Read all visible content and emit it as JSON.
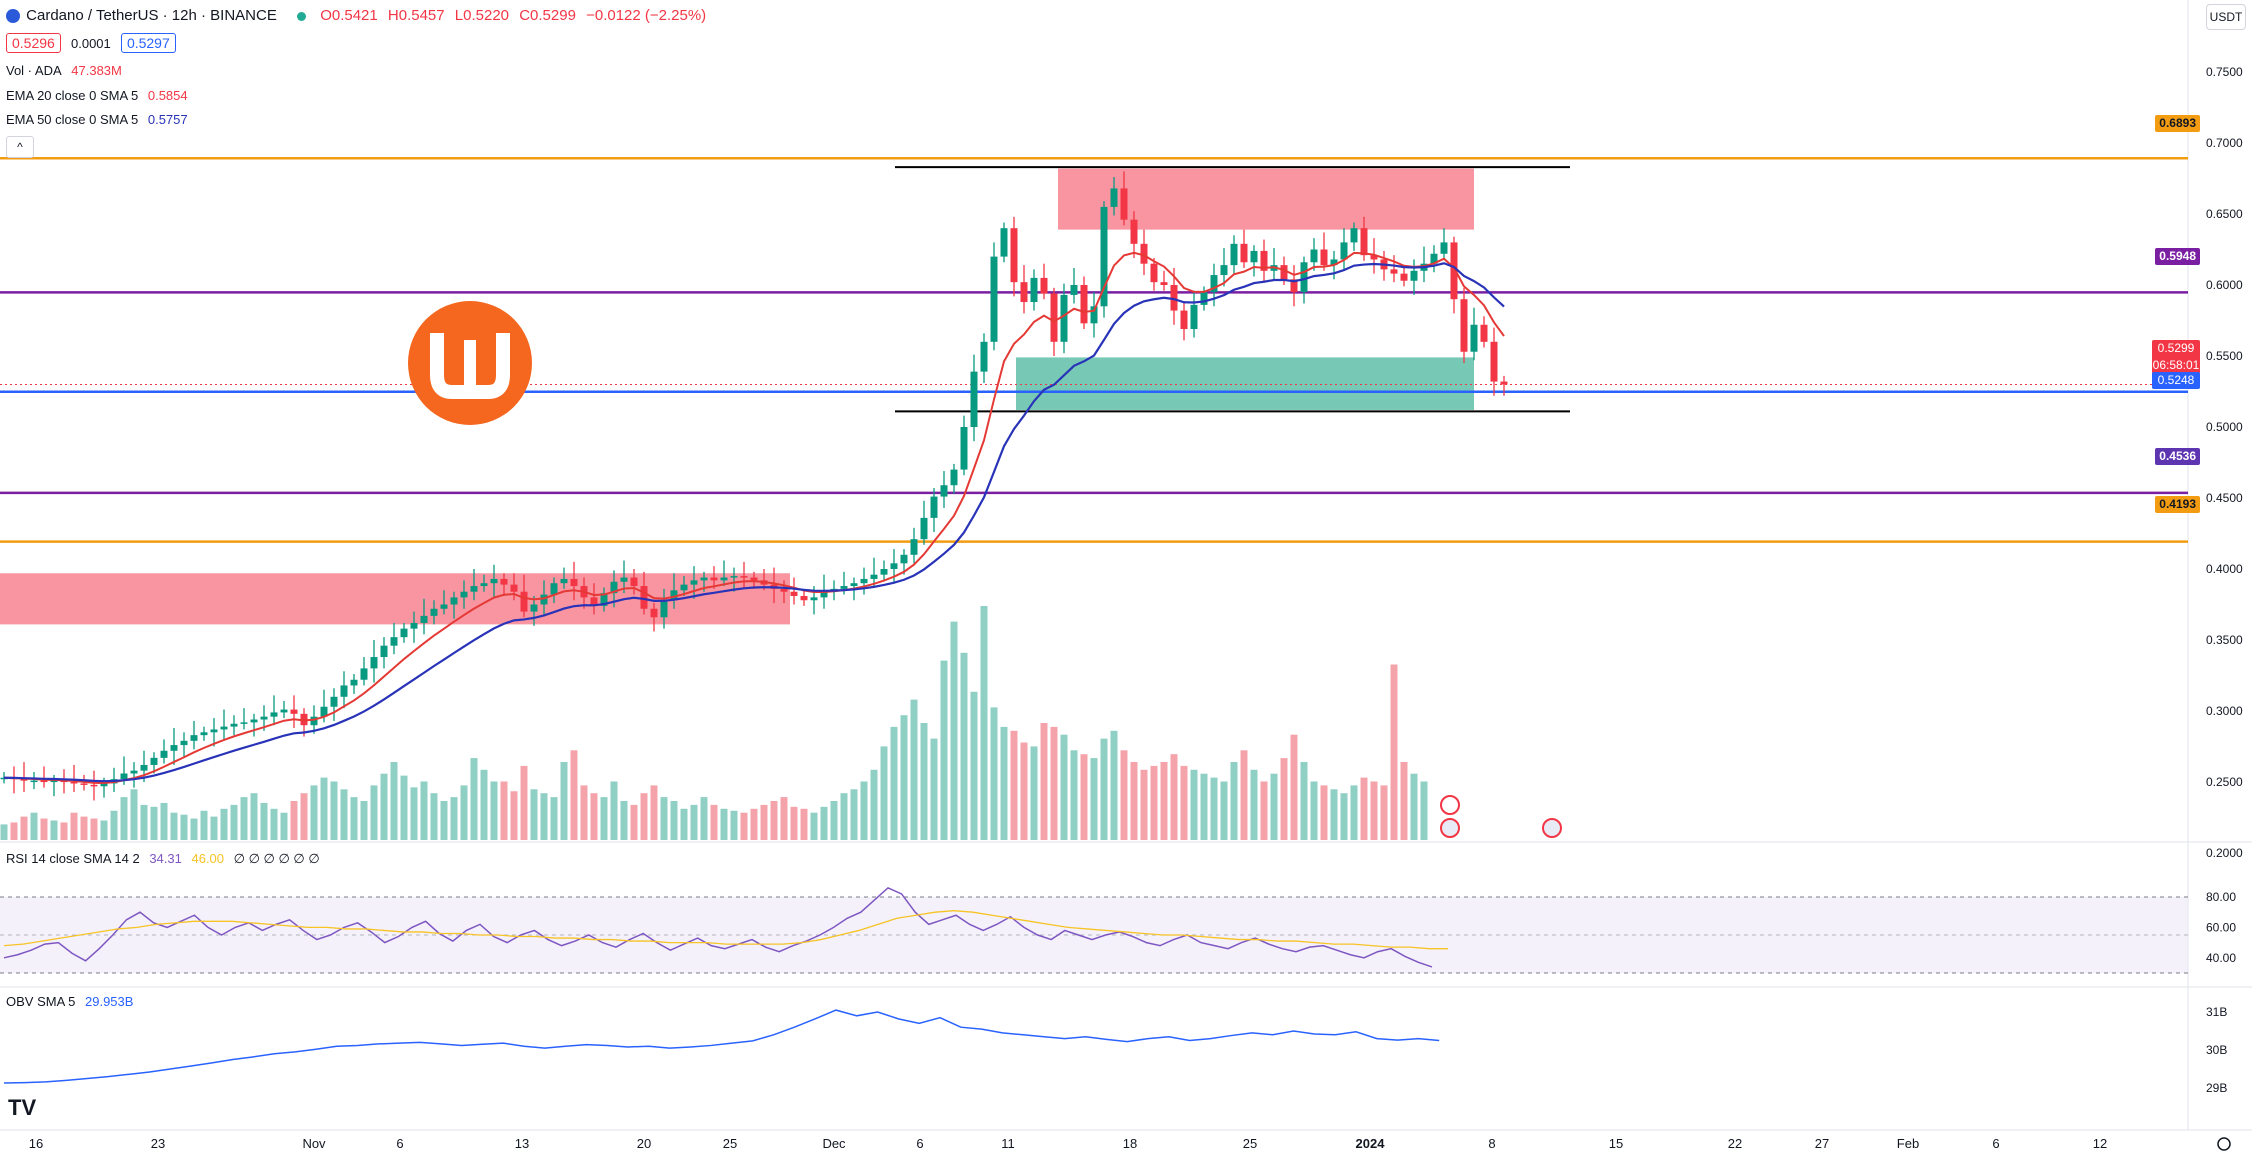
{
  "header": {
    "symbol": "Cardano / TetherUS · 12h · BINANCE",
    "open": "O0.5421",
    "high": "H0.5457",
    "low": "L0.5220",
    "close": "C0.5299",
    "change": "−0.0122 (−2.25%)",
    "bid": "0.5296",
    "spread": "0.0001",
    "ask": "0.5297",
    "currency_button": "USDT"
  },
  "indicators": {
    "vol_label": "Vol · ADA",
    "vol_value": "47.383M",
    "ema20_label": "EMA 20 close 0 SMA 5",
    "ema20_value": "0.5854",
    "ema50_label": "EMA 50 close 0 SMA 5",
    "ema50_value": "0.5757",
    "rsi_label": "RSI 14 close SMA 14 2",
    "rsi_value": "34.31",
    "rsi_sma": "46.00",
    "rsi_zeros": "∅ ∅ ∅ ∅ ∅ ∅",
    "obv_label": "OBV SMA 5",
    "obv_value": "29.953B"
  },
  "price_tags": {
    "current_price": "0.5299",
    "countdown": "06:58:01",
    "blue_line": "0.5248",
    "orange_top": "0.6893",
    "purple_top": "0.5948",
    "purple_low": "0.4536",
    "orange_low": "0.4193"
  },
  "colors": {
    "up": "#089981",
    "down": "#f23645",
    "up_vol": "#8fcfc4",
    "down_vol": "#f5a3aa",
    "ema20": "#e53935",
    "ema50": "#2933b8",
    "orange_line": "#f39c12",
    "purple_line": "#7b1fa2",
    "blue_line": "#2962ff",
    "logo": "#f5661f"
  },
  "chart_data": {
    "type": "candlestick",
    "title": "Cardano / TetherUS · 12h · BINANCE",
    "price_axis_ticks": [
      "0.7500",
      "0.7000",
      "0.6500",
      "0.6000",
      "0.5500",
      "0.5000",
      "0.4500",
      "0.4000",
      "0.3500",
      "0.3000",
      "0.2500",
      "0.2000"
    ],
    "time_axis_ticks": [
      "16",
      "23",
      "Nov",
      "6",
      "13",
      "20",
      "25",
      "Dec",
      "6",
      "11",
      "18",
      "25",
      "2024",
      "8",
      "15",
      "22",
      "27",
      "Feb",
      "6",
      "12"
    ],
    "rsi_axis_ticks": [
      "80.00",
      "60.00",
      "40.00"
    ],
    "obv_axis_ticks": [
      "31B",
      "30B",
      "29B"
    ],
    "horizontal_levels": [
      {
        "price": 0.6893,
        "color": "orange"
      },
      {
        "price": 0.5948,
        "color": "purple"
      },
      {
        "price": 0.5248,
        "color": "blue"
      },
      {
        "price": 0.4536,
        "color": "purple"
      },
      {
        "price": 0.4193,
        "color": "orange"
      }
    ],
    "zones": [
      {
        "type": "supply",
        "from_date": "Oct 9",
        "to_date": "Nov 29",
        "low": 0.361,
        "high": 0.397
      },
      {
        "type": "supply",
        "from_date": "Dec 14",
        "to_date": "Jan 5",
        "low": 0.639,
        "high": 0.682
      },
      {
        "type": "demand",
        "from_date": "Dec 10",
        "to_date": "Jan 5",
        "low": 0.512,
        "high": 0.549
      }
    ],
    "range_lines": [
      {
        "price": 0.683,
        "from_date": "Dec 7",
        "to_date": "Jan 10"
      },
      {
        "price": 0.511,
        "from_date": "Dec 7",
        "to_date": "Jan 10"
      }
    ],
    "close_series": [
      0.253,
      0.252,
      0.251,
      0.251,
      0.25,
      0.251,
      0.25,
      0.249,
      0.248,
      0.247,
      0.249,
      0.252,
      0.256,
      0.258,
      0.262,
      0.267,
      0.272,
      0.276,
      0.279,
      0.283,
      0.285,
      0.287,
      0.289,
      0.291,
      0.292,
      0.294,
      0.296,
      0.299,
      0.301,
      0.298,
      0.29,
      0.296,
      0.303,
      0.31,
      0.318,
      0.322,
      0.33,
      0.338,
      0.346,
      0.352,
      0.358,
      0.362,
      0.367,
      0.372,
      0.375,
      0.38,
      0.384,
      0.388,
      0.39,
      0.393,
      0.389,
      0.384,
      0.37,
      0.375,
      0.382,
      0.39,
      0.393,
      0.388,
      0.38,
      0.374,
      0.383,
      0.391,
      0.394,
      0.388,
      0.372,
      0.366,
      0.378,
      0.385,
      0.389,
      0.392,
      0.394,
      0.392,
      0.394,
      0.395,
      0.394,
      0.392,
      0.389,
      0.386,
      0.384,
      0.381,
      0.378,
      0.38,
      0.384,
      0.386,
      0.388,
      0.39,
      0.393,
      0.396,
      0.4,
      0.404,
      0.41,
      0.421,
      0.436,
      0.451,
      0.459,
      0.47,
      0.5,
      0.539,
      0.56,
      0.62,
      0.64,
      0.602,
      0.588,
      0.605,
      0.594,
      0.56,
      0.593,
      0.6,
      0.573,
      0.585,
      0.655,
      0.668,
      0.646,
      0.629,
      0.615,
      0.602,
      0.6,
      0.582,
      0.569,
      0.586,
      0.595,
      0.607,
      0.614,
      0.629,
      0.616,
      0.624,
      0.61,
      0.614,
      0.604,
      0.595,
      0.616,
      0.625,
      0.614,
      0.618,
      0.63,
      0.64,
      0.621,
      0.618,
      0.611,
      0.608,
      0.603,
      0.61,
      0.615,
      0.622,
      0.63,
      0.59,
      0.553,
      0.572,
      0.56,
      0.532,
      0.53
    ],
    "volume_series_m": [
      8,
      9,
      12,
      14,
      11,
      10,
      9,
      14,
      12,
      11,
      10,
      15,
      22,
      26,
      18,
      17,
      19,
      14,
      13,
      11,
      15,
      12,
      16,
      18,
      22,
      24,
      19,
      16,
      14,
      20,
      24,
      28,
      32,
      30,
      26,
      22,
      20,
      28,
      34,
      40,
      33,
      27,
      30,
      24,
      20,
      22,
      28,
      42,
      36,
      30,
      30,
      25,
      38,
      26,
      24,
      22,
      40,
      46,
      28,
      24,
      22,
      30,
      20,
      18,
      24,
      28,
      22,
      20,
      16,
      18,
      22,
      18,
      16,
      15,
      14,
      16,
      18,
      20,
      22,
      17,
      16,
      14,
      17,
      20,
      24,
      26,
      30,
      36,
      48,
      58,
      64,
      72,
      60,
      52,
      92,
      112,
      96,
      76,
      120,
      68,
      58,
      56,
      50,
      48,
      60,
      58,
      54,
      46,
      44,
      42,
      52,
      56,
      46,
      40,
      36,
      38,
      40,
      44,
      38,
      36,
      34,
      32,
      30,
      40,
      46,
      36,
      30,
      34,
      42,
      54,
      40,
      30,
      28,
      26,
      24,
      28,
      32,
      30,
      28,
      90,
      40,
      34,
      30
    ],
    "rsi_series": [
      40,
      42,
      45,
      49,
      50,
      43,
      38,
      46,
      55,
      65,
      70,
      63,
      60,
      64,
      68,
      60,
      55,
      60,
      63,
      58,
      62,
      65,
      58,
      52,
      55,
      60,
      63,
      57,
      50,
      54,
      60,
      64,
      56,
      51,
      58,
      62,
      54,
      50,
      55,
      58,
      52,
      48,
      51,
      55,
      50,
      47,
      52,
      56,
      50,
      45,
      49,
      53,
      48,
      46,
      49,
      52,
      47,
      44,
      48,
      51,
      55,
      60,
      66,
      70,
      78,
      86,
      82,
      70,
      62,
      65,
      68,
      62,
      58,
      62,
      67,
      60,
      55,
      52,
      58,
      55,
      52,
      55,
      57,
      54,
      50,
      48,
      52,
      55,
      50,
      48,
      46,
      50,
      53,
      49,
      46,
      44,
      47,
      48,
      45,
      42,
      40,
      44,
      46,
      41,
      37,
      34
    ],
    "rsi_sma_series": [
      48,
      49,
      51,
      53,
      55,
      57,
      59,
      60,
      62,
      63,
      64,
      64,
      64,
      63,
      62,
      61,
      60,
      60,
      59,
      59,
      58,
      57,
      57,
      56,
      56,
      55,
      55,
      54,
      54,
      53,
      53,
      52,
      52,
      51,
      51,
      50,
      50,
      50,
      49,
      49,
      49,
      49,
      50,
      52,
      55,
      58,
      62,
      66,
      68,
      70,
      71,
      70,
      68,
      66,
      64,
      62,
      60,
      59,
      58,
      57,
      56,
      55,
      55,
      54,
      53,
      52,
      52,
      51,
      51,
      50,
      49,
      49,
      48,
      47,
      47,
      46,
      46
    ],
    "obv_series": [
      29.13,
      29.14,
      29.16,
      29.2,
      29.25,
      29.3,
      29.36,
      29.42,
      29.5,
      29.58,
      29.66,
      29.75,
      29.82,
      29.9,
      29.95,
      30.02,
      30.1,
      30.12,
      30.16,
      30.18,
      30.2,
      30.16,
      30.12,
      30.15,
      30.18,
      30.1,
      30.05,
      30.1,
      30.14,
      30.12,
      30.08,
      30.1,
      30.05,
      30.08,
      30.12,
      30.18,
      30.24,
      30.4,
      30.6,
      30.82,
      31.05,
      30.9,
      31.0,
      30.82,
      30.7,
      30.85,
      30.6,
      30.55,
      30.45,
      30.4,
      30.35,
      30.3,
      30.35,
      30.28,
      30.22,
      30.3,
      30.35,
      30.25,
      30.3,
      30.38,
      30.45,
      30.4,
      30.5,
      30.42,
      30.4,
      30.48,
      30.3,
      30.26,
      30.3,
      30.25
    ]
  }
}
